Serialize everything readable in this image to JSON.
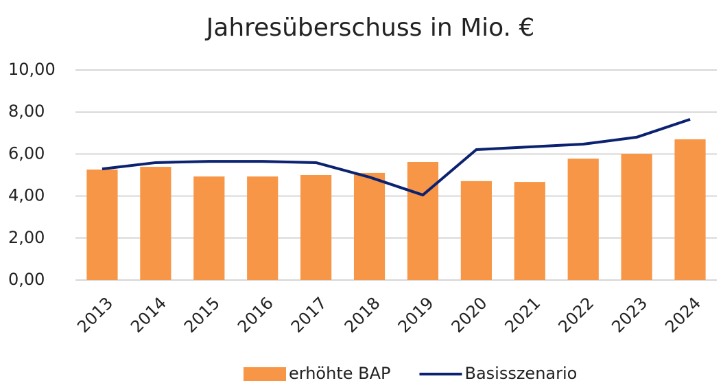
{
  "chart_data": {
    "type": "bar",
    "title": "Jahresüberschuss in Mio. €",
    "categories": [
      "2013",
      "2014",
      "2015",
      "2016",
      "2017",
      "2018",
      "2019",
      "2020",
      "2021",
      "2022",
      "2023",
      "2024"
    ],
    "series": [
      {
        "name": "erhöhte BAP",
        "type": "bar",
        "color": "#f79646",
        "values": [
          5.26,
          5.39,
          4.93,
          4.93,
          5.0,
          5.1,
          5.62,
          4.71,
          4.67,
          5.78,
          6.01,
          6.7
        ]
      },
      {
        "name": "Basisszenario",
        "type": "line",
        "color": "#0b2270",
        "values": [
          5.29,
          5.59,
          5.65,
          5.65,
          5.59,
          4.9,
          4.05,
          6.21,
          6.34,
          6.47,
          6.8,
          7.65
        ]
      }
    ],
    "ylim": [
      0,
      10
    ],
    "yticks": [
      {
        "value": 0,
        "label": "0,00"
      },
      {
        "value": 2,
        "label": "2,00"
      },
      {
        "value": 4,
        "label": "4,00"
      },
      {
        "value": 6,
        "label": "6,00"
      },
      {
        "value": 8,
        "label": "8,00"
      },
      {
        "value": 10,
        "label": "10,00"
      }
    ],
    "grid": true,
    "legend": "bottom"
  }
}
